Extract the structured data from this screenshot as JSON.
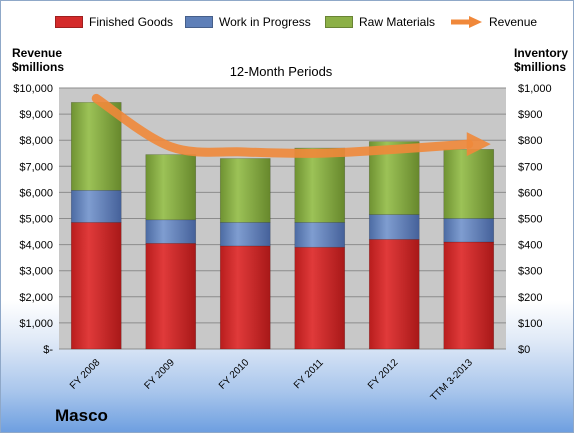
{
  "chart_data": {
    "type": "bar",
    "stacked": true,
    "subtitle": "12-Month Periods",
    "categories": [
      "FY 2008",
      "FY 2009",
      "FY 2010",
      "FY 2011",
      "FY 2012",
      "TTM 3-2013"
    ],
    "series": [
      {
        "name": "Finished Goods",
        "color": "#d42a2a",
        "values": [
          485,
          405,
          395,
          390,
          420,
          410
        ]
      },
      {
        "name": "Work in Progress",
        "color": "#5e7fb8",
        "values": [
          123,
          90,
          90,
          95,
          95,
          90
        ]
      },
      {
        "name": "Raw Materials",
        "color": "#8cb047",
        "values": [
          337,
          250,
          245,
          285,
          280,
          265
        ]
      }
    ],
    "line_series": {
      "name": "Revenue",
      "color": "#f0883a",
      "values": [
        9600,
        7750,
        7550,
        7500,
        7650,
        7850
      ]
    },
    "left_axis": {
      "label_line1": "Revenue",
      "label_line2": "$millions",
      "ylim": [
        0,
        10000
      ],
      "ticks": [
        "$-",
        "$1,000",
        "$2,000",
        "$3,000",
        "$4,000",
        "$5,000",
        "$6,000",
        "$7,000",
        "$8,000",
        "$9,000",
        "$10,000"
      ]
    },
    "right_axis": {
      "label_line1": "Inventory",
      "label_line2": "$millions",
      "ylim": [
        0,
        1000
      ],
      "ticks": [
        "$0",
        "$100",
        "$200",
        "$300",
        "$400",
        "$500",
        "$600",
        "$700",
        "$800",
        "$900",
        "$1,000"
      ]
    },
    "grid": true,
    "legend_position": "top"
  },
  "company": "Masco",
  "colors": {
    "plot_bg": "#c8c8c8",
    "gridline": "#8c8c8c"
  }
}
